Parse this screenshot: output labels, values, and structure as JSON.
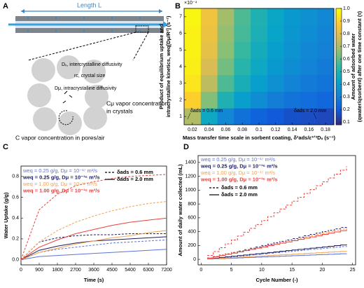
{
  "diagram": {
    "label": "A",
    "length_label": "Length L",
    "dv_label": "Dᵥ, intercrystalline diffusivity",
    "rc_label": "rc, crystal size",
    "dmu_label": "Dμ, intracrystalline diffusivity",
    "cmu_label": [
      "Cμ vapor concentration",
      "in crystals"
    ],
    "c_label": "C vapor concentration in pores/air"
  },
  "chart_data": [
    {
      "type": "heatmap",
      "label": "B",
      "multiplier": "×10⁻⁴",
      "xlabel": "Mass transfer time scale in sorbent coating, δ²ads/ε³ᐟ²Dᵥ (s⁻¹)",
      "ylabel": [
        "Product of equilibrium uptake and",
        "intracrystalline kinetics, weq[Dμ/R²] (s⁻¹)"
      ],
      "colorbar_label": [
        "Amount of adsorbed water",
        "(qwater/qsorbent) after one time constant (τ)"
      ],
      "x": [
        0.02,
        0.04,
        0.06,
        0.08,
        0.1,
        0.12,
        0.14,
        0.16,
        0.18
      ],
      "y": [
        1,
        2,
        3,
        4,
        5,
        6,
        7
      ],
      "z": [
        [
          0.72,
          0.45,
          0.33,
          0.26,
          0.22,
          0.19,
          0.17,
          0.16,
          0.15
        ],
        [
          0.9,
          0.65,
          0.5,
          0.41,
          0.35,
          0.3,
          0.27,
          0.25,
          0.23
        ],
        [
          0.95,
          0.74,
          0.58,
          0.48,
          0.41,
          0.36,
          0.32,
          0.29,
          0.27
        ],
        [
          0.97,
          0.79,
          0.63,
          0.52,
          0.45,
          0.39,
          0.35,
          0.32,
          0.29
        ],
        [
          0.98,
          0.82,
          0.66,
          0.55,
          0.47,
          0.41,
          0.37,
          0.33,
          0.31
        ],
        [
          0.98,
          0.84,
          0.68,
          0.57,
          0.49,
          0.43,
          0.38,
          0.35,
          0.32
        ],
        [
          0.99,
          0.85,
          0.7,
          0.58,
          0.5,
          0.44,
          0.39,
          0.36,
          0.33
        ]
      ],
      "xlim": [
        0.01,
        0.19
      ],
      "ylim": [
        0.5,
        7.5
      ],
      "xticks": [
        0.02,
        0.04,
        0.06,
        0.08,
        0.1,
        0.12,
        0.14,
        0.16,
        0.18
      ],
      "yticks": [
        1,
        2,
        3,
        4,
        5,
        6,
        7
      ],
      "clim": [
        0.08,
        1.0
      ],
      "cticks": [
        0.1,
        0.2,
        0.3,
        0.4,
        0.5,
        0.6,
        0.7,
        0.8,
        0.9,
        {
          "value": 1,
          "label": "1.0"
        }
      ],
      "colormap": [
        "#352a87",
        "#0f5cdd",
        "#1481d6",
        "#06a4ca",
        "#2eb7a4",
        "#87bf77",
        "#d1bb59",
        "#fec832",
        "#f9fb0e"
      ],
      "annotations": [
        "δads = 0.6 mm",
        "δads = 2.0 mm"
      ]
    },
    {
      "type": "line",
      "label": "C",
      "xlabel": "Time (s)",
      "ylabel": "Water Uptake (g/g)",
      "x": [
        0,
        900,
        1800,
        2700,
        3600,
        4500,
        5400,
        6300,
        7200
      ],
      "xlim": [
        0,
        7200
      ],
      "ylim": [
        -0.05,
        0.9
      ],
      "xticks": [
        0,
        900,
        1800,
        2700,
        3600,
        4500,
        5400,
        6300,
        7200
      ],
      "yticks": [
        {
          "value": 0,
          "label": "0.0"
        },
        0.2,
        0.4,
        0.6,
        0.8
      ],
      "line_styles": [
        {
          "name": "δads = 0.6 mm",
          "dashed": true
        },
        {
          "name": "δads = 2.0 mm",
          "dashed": false
        }
      ],
      "series": [
        {
          "name": "weq = 0.25 g/g, Dμ = 10⁻¹⁷ m²/s",
          "color": "#5b73d6",
          "bold": false,
          "values": [
            [
              0,
              0.07,
              0.1,
              0.12,
              0.14,
              0.16,
              0.17,
              0.18,
              0.19
            ],
            [
              0,
              0.03,
              0.04,
              0.05,
              0.06,
              0.07,
              0.08,
              0.09,
              0.1
            ]
          ]
        },
        {
          "name": "weq = 0.25 g/g, Dμ = 10⁻¹⁶ m²/s",
          "color": "#1c1c5c",
          "bold": true,
          "values": [
            [
              0,
              0.17,
              0.21,
              0.23,
              0.24,
              0.24,
              0.25,
              0.25,
              0.25
            ],
            [
              0,
              0.09,
              0.13,
              0.16,
              0.18,
              0.19,
              0.2,
              0.21,
              0.22
            ]
          ]
        },
        {
          "name": "weq = 1.00 g/g, Dμ = 10⁻¹⁷ m²/s",
          "color": "#f0a050",
          "bold": false,
          "values": [
            [
              0,
              0.17,
              0.28,
              0.36,
              0.42,
              0.47,
              0.51,
              0.54,
              0.56
            ],
            [
              0,
              0.07,
              0.11,
              0.15,
              0.18,
              0.21,
              0.23,
              0.26,
              0.28
            ]
          ]
        },
        {
          "name": "weq = 1.00 g/g, Dμ = 10⁻¹⁶ m²/s",
          "color": "#e8403c",
          "bold": true,
          "values": [
            [
              0,
              0.48,
              0.63,
              0.71,
              0.75,
              0.78,
              0.8,
              0.81,
              0.82
            ],
            [
              0,
              0.12,
              0.19,
              0.25,
              0.29,
              0.33,
              0.36,
              0.38,
              0.4
            ]
          ]
        }
      ]
    },
    {
      "type": "step",
      "label": "D",
      "xlabel": "Cycle Number (-)",
      "ylabel": "Amount of daily water collected (mL)",
      "x": [
        1,
        2,
        3,
        4,
        5,
        6,
        7,
        8,
        9,
        10,
        11,
        12,
        13,
        14,
        15,
        16,
        17,
        18,
        19,
        20,
        21,
        22,
        23,
        24
      ],
      "xlim": [
        -0.5,
        25.5
      ],
      "ylim": [
        -80,
        1500
      ],
      "xticks": [
        0,
        5,
        10,
        15,
        20,
        25
      ],
      "yticks": [
        0,
        200,
        400,
        600,
        800,
        1000,
        1200,
        1400
      ],
      "line_styles": [
        {
          "name": "δads = 0.6 mm",
          "dashed": true
        },
        {
          "name": "δads = 2.0 mm",
          "dashed": false
        }
      ],
      "series": [
        {
          "name": "weq = 0.25 g/g, Dμ = 10⁻¹⁷ m²/s",
          "color": "#5b73d6",
          "bold": false,
          "values": [
            [
              8,
              16,
              24,
              32,
              40,
              48,
              56,
              64,
              72,
              80,
              88,
              96,
              104,
              112,
              120,
              128,
              136,
              144,
              152,
              160,
              168,
              176,
              184,
              192
            ],
            [
              3.5,
              7,
              10.5,
              14,
              17.5,
              21,
              24.5,
              28,
              31.5,
              35,
              38.5,
              42,
              45.5,
              49,
              52.5,
              56,
              59.5,
              63,
              66.5,
              70,
              73.5,
              77,
              80.5,
              84
            ]
          ]
        },
        {
          "name": "weq = 0.25 g/g, Dμ = 10⁻¹⁶ m²/s",
          "color": "#1c1c5c",
          "bold": true,
          "values": [
            [
              20,
              40,
              60,
              80,
              100,
              120,
              140,
              160,
              180,
              200,
              220,
              240,
              260,
              280,
              300,
              320,
              340,
              360,
              380,
              400,
              420,
              440,
              460,
              480
            ],
            [
              9,
              18,
              27,
              36,
              45,
              54,
              63,
              72,
              81,
              90,
              99,
              108,
              117,
              126,
              135,
              144,
              153,
              162,
              171,
              180,
              189,
              198,
              207,
              216
            ]
          ]
        },
        {
          "name": "weq = 1.00 g/g, Dμ = 10⁻¹⁷ m²/s",
          "color": "#f0a050",
          "bold": false,
          "values": [
            [
              19,
              38,
              57,
              76,
              95,
              114,
              133,
              152,
              171,
              190,
              209,
              228,
              247,
              266,
              285,
              304,
              323,
              342,
              361,
              380,
              399,
              418,
              437,
              456
            ],
            [
              5,
              10,
              15,
              20,
              25,
              30,
              35,
              40,
              45,
              50,
              55,
              60,
              65,
              70,
              75,
              80,
              85,
              90,
              95,
              100,
              105,
              110,
              115,
              120
            ]
          ]
        },
        {
          "name": "weq = 1.00 g/g, Dμ = 10⁻¹⁶ m²/s",
          "color": "#e8403c",
          "bold": true,
          "values": [
            [
              56,
              112,
              168,
              224,
              280,
              336,
              392,
              448,
              504,
              560,
              616,
              672,
              728,
              784,
              840,
              896,
              952,
              1008,
              1064,
              1120,
              1176,
              1232,
              1288,
              1344
            ],
            [
              18,
              36,
              54,
              72,
              90,
              108,
              126,
              144,
              162,
              180,
              198,
              216,
              234,
              252,
              270,
              288,
              306,
              324,
              342,
              360,
              378,
              396,
              414,
              432
            ]
          ]
        }
      ]
    }
  ]
}
